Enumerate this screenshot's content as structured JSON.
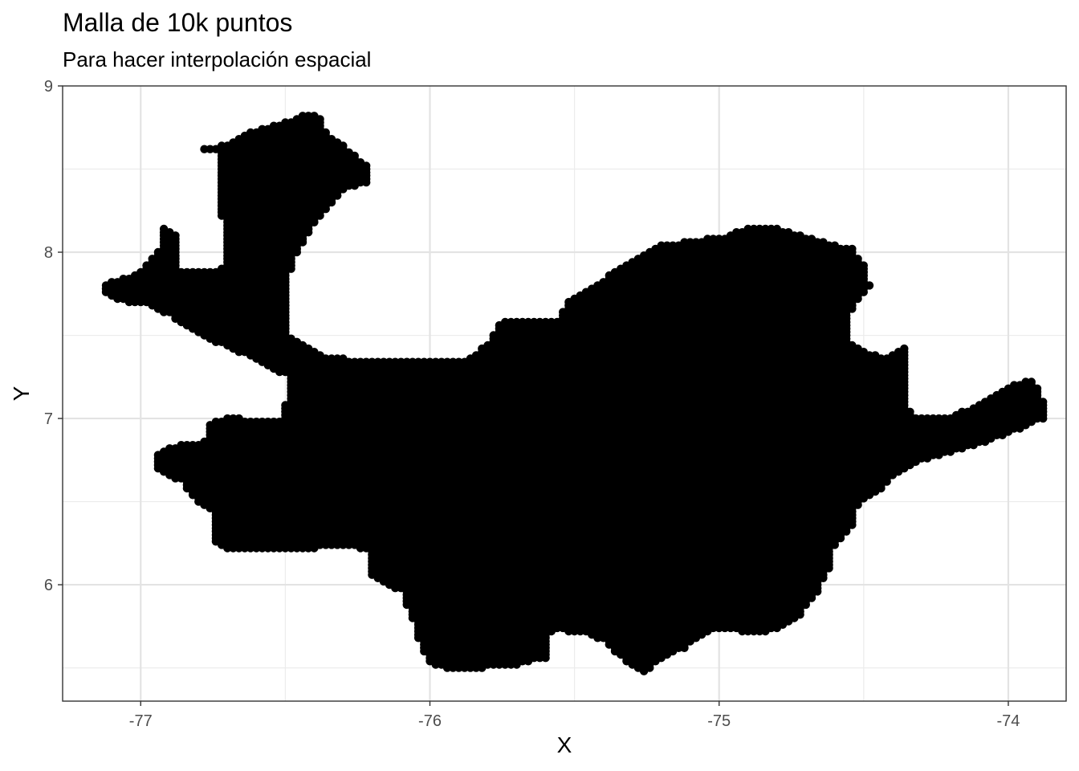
{
  "chart_data": {
    "type": "scatter",
    "title": "Malla de 10k puntos",
    "subtitle": "Para hacer interpolación espacial",
    "xlabel": "X",
    "ylabel": "Y",
    "xlim": [
      -77.27,
      -73.8
    ],
    "ylim": [
      5.3,
      9.0
    ],
    "x_ticks": [
      -77,
      -76,
      -75,
      -74
    ],
    "x_tick_labels": [
      "-77",
      "-76",
      "-75",
      "-74"
    ],
    "y_ticks": [
      6,
      7,
      8,
      9
    ],
    "y_tick_labels": [
      "6",
      "7",
      "8",
      "9"
    ],
    "grid": true,
    "legend": "none",
    "point_color": "#000000",
    "grid_spacing": [
      0.02,
      0.02
    ],
    "outline": [
      [
        -77.12,
        7.81
      ],
      [
        -77.0,
        7.88
      ],
      [
        -76.94,
        8.02
      ],
      [
        -76.94,
        8.16
      ],
      [
        -76.88,
        8.1
      ],
      [
        -76.88,
        7.9
      ],
      [
        -76.78,
        7.88
      ],
      [
        -76.72,
        7.9
      ],
      [
        -76.72,
        8.2
      ],
      [
        -76.74,
        8.6
      ],
      [
        -76.86,
        8.6
      ],
      [
        -76.72,
        8.64
      ],
      [
        -76.6,
        8.74
      ],
      [
        -76.5,
        8.78
      ],
      [
        -76.42,
        8.84
      ],
      [
        -76.38,
        8.8
      ],
      [
        -76.36,
        8.72
      ],
      [
        -76.3,
        8.64
      ],
      [
        -76.22,
        8.52
      ],
      [
        -76.22,
        8.41
      ],
      [
        -76.3,
        8.38
      ],
      [
        -76.38,
        8.22
      ],
      [
        -76.46,
        8.0
      ],
      [
        -76.5,
        7.78
      ],
      [
        -76.5,
        7.5
      ],
      [
        -76.44,
        7.44
      ],
      [
        -76.38,
        7.38
      ],
      [
        -76.3,
        7.36
      ],
      [
        -75.98,
        7.35
      ],
      [
        -75.86,
        7.36
      ],
      [
        -75.8,
        7.46
      ],
      [
        -75.76,
        7.58
      ],
      [
        -75.6,
        7.58
      ],
      [
        -75.56,
        7.6
      ],
      [
        -75.52,
        7.72
      ],
      [
        -75.46,
        7.78
      ],
      [
        -75.4,
        7.84
      ],
      [
        -75.3,
        7.95
      ],
      [
        -75.22,
        8.04
      ],
      [
        -75.06,
        8.08
      ],
      [
        -74.98,
        8.1
      ],
      [
        -74.92,
        8.14
      ],
      [
        -74.82,
        8.16
      ],
      [
        -74.76,
        8.12
      ],
      [
        -74.64,
        8.06
      ],
      [
        -74.54,
        8.02
      ],
      [
        -74.5,
        7.92
      ],
      [
        -74.48,
        7.8
      ],
      [
        -74.52,
        7.72
      ],
      [
        -74.56,
        7.6
      ],
      [
        -74.56,
        7.46
      ],
      [
        -74.46,
        7.38
      ],
      [
        -74.42,
        7.36
      ],
      [
        -74.36,
        7.44
      ],
      [
        -74.34,
        7.46
      ],
      [
        -74.36,
        7.32
      ],
      [
        -74.36,
        7.1
      ],
      [
        -74.32,
        7.0
      ],
      [
        -74.22,
        7.0
      ],
      [
        -74.14,
        7.06
      ],
      [
        -74.06,
        7.14
      ],
      [
        -73.96,
        7.22
      ],
      [
        -73.91,
        7.22
      ],
      [
        -73.88,
        7.1
      ],
      [
        -73.88,
        7.0
      ],
      [
        -73.96,
        6.94
      ],
      [
        -74.08,
        6.86
      ],
      [
        -74.2,
        6.8
      ],
      [
        -74.34,
        6.72
      ],
      [
        -74.4,
        6.66
      ],
      [
        -74.44,
        6.58
      ],
      [
        -74.52,
        6.48
      ],
      [
        -74.54,
        6.36
      ],
      [
        -74.6,
        6.24
      ],
      [
        -74.62,
        6.1
      ],
      [
        -74.66,
        5.96
      ],
      [
        -74.72,
        5.82
      ],
      [
        -74.8,
        5.74
      ],
      [
        -74.86,
        5.7
      ],
      [
        -74.94,
        5.72
      ],
      [
        -75.02,
        5.74
      ],
      [
        -75.12,
        5.62
      ],
      [
        -75.22,
        5.54
      ],
      [
        -75.26,
        5.46
      ],
      [
        -75.34,
        5.56
      ],
      [
        -75.4,
        5.66
      ],
      [
        -75.46,
        5.7
      ],
      [
        -75.54,
        5.72
      ],
      [
        -75.58,
        5.72
      ],
      [
        -75.6,
        5.56
      ],
      [
        -75.7,
        5.52
      ],
      [
        -75.92,
        5.48
      ],
      [
        -76.0,
        5.52
      ],
      [
        -76.04,
        5.66
      ],
      [
        -76.06,
        5.78
      ],
      [
        -76.1,
        5.96
      ],
      [
        -76.2,
        6.04
      ],
      [
        -76.22,
        6.2
      ],
      [
        -76.3,
        6.24
      ],
      [
        -76.5,
        6.2
      ],
      [
        -76.7,
        6.2
      ],
      [
        -76.76,
        6.28
      ],
      [
        -76.76,
        6.44
      ],
      [
        -76.82,
        6.52
      ],
      [
        -76.86,
        6.62
      ],
      [
        -76.96,
        6.7
      ],
      [
        -76.96,
        6.78
      ],
      [
        -76.88,
        6.84
      ],
      [
        -76.78,
        6.86
      ],
      [
        -76.76,
        6.98
      ],
      [
        -76.68,
        7.02
      ],
      [
        -76.62,
        6.98
      ],
      [
        -76.52,
        6.98
      ],
      [
        -76.5,
        7.1
      ],
      [
        -76.5,
        7.26
      ],
      [
        -76.58,
        7.32
      ],
      [
        -76.64,
        7.38
      ],
      [
        -76.72,
        7.44
      ],
      [
        -76.82,
        7.52
      ],
      [
        -76.9,
        7.62
      ],
      [
        -76.98,
        7.68
      ],
      [
        -77.06,
        7.7
      ],
      [
        -77.12,
        7.74
      ]
    ]
  }
}
